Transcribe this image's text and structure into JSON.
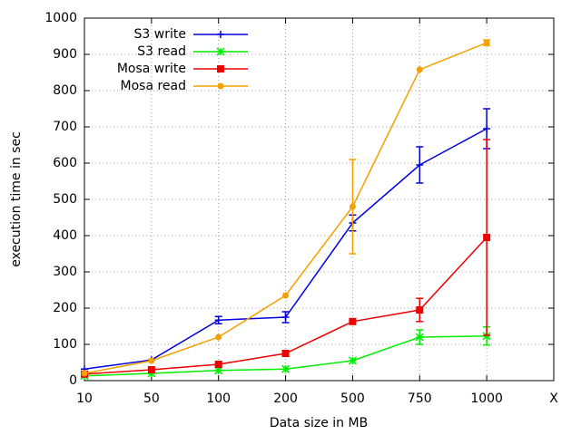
{
  "chart_data": {
    "type": "line",
    "categories": [
      "10",
      "50",
      "100",
      "200",
      "500",
      "750",
      "1000",
      "X"
    ],
    "xlabel": "Data size in MB",
    "ylabel": "execution time in sec",
    "ylim": [
      0,
      1000
    ],
    "yticks": [
      0,
      100,
      200,
      300,
      400,
      500,
      600,
      700,
      800,
      900,
      1000
    ],
    "grid": true,
    "legend": "top-left",
    "series": [
      {
        "name": "S3 write",
        "color": "#0000dd",
        "marker": "plus",
        "values": [
          32,
          57,
          167,
          175,
          435,
          595,
          695,
          null
        ],
        "errors": [
          null,
          null,
          10,
          15,
          22,
          50,
          55,
          null
        ]
      },
      {
        "name": "S3 read",
        "color": "#00ee00",
        "marker": "star",
        "values": [
          13,
          20,
          28,
          32,
          55,
          120,
          123,
          null
        ],
        "errors": [
          null,
          null,
          null,
          null,
          null,
          20,
          25,
          null
        ]
      },
      {
        "name": "Mosa write",
        "color": "#ee0000",
        "marker": "square",
        "values": [
          18,
          30,
          45,
          75,
          163,
          195,
          395,
          null
        ],
        "errors": [
          null,
          null,
          null,
          null,
          null,
          32,
          270,
          null
        ]
      },
      {
        "name": "Mosa read",
        "color": "#f5a000",
        "marker": "circle",
        "values": [
          20,
          55,
          120,
          235,
          480,
          858,
          932,
          null
        ],
        "errors": [
          null,
          null,
          null,
          null,
          130,
          null,
          8,
          null
        ]
      }
    ]
  }
}
